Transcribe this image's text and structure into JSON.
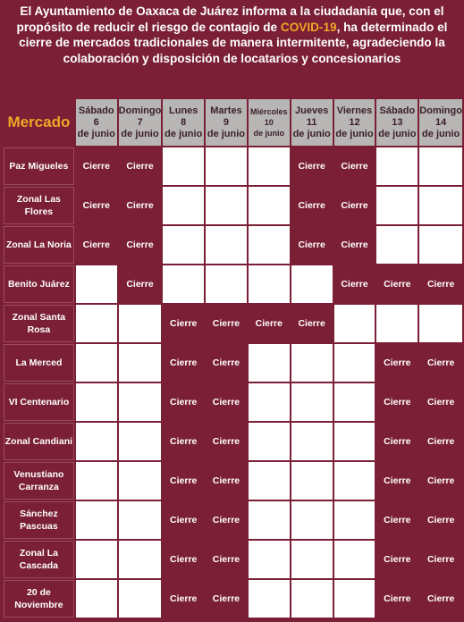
{
  "intro": {
    "before": "El Ayuntamiento de Oaxaca de Juárez informa a la ciudadanía que, con el propósito de reducir el riesgo de contagio de ",
    "highlight": "COVID-19",
    "after": ", ha determinado el cierre de mercados tradicionales de manera intermitente, agradeciendo la colaboración y disposición de locatarios y concesionarios"
  },
  "table": {
    "header_label": "Mercado",
    "days": [
      {
        "weekday": "Sábado",
        "date": "6",
        "month": "de junio"
      },
      {
        "weekday": "Domingo",
        "date": "7",
        "month": "de junio"
      },
      {
        "weekday": "Lunes",
        "date": "8",
        "month": "de junio"
      },
      {
        "weekday": "Martes",
        "date": "9",
        "month": "de junio"
      },
      {
        "weekday": "Miércoles",
        "date": "10",
        "month": "de junio"
      },
      {
        "weekday": "Jueves",
        "date": "11",
        "month": "de junio"
      },
      {
        "weekday": "Viernes",
        "date": "12",
        "month": "de junio"
      },
      {
        "weekday": "Sábado",
        "date": "13",
        "month": "de junio"
      },
      {
        "weekday": "Domingo",
        "date": "14",
        "month": "de junio"
      }
    ],
    "rows": [
      {
        "name": "Paz Migueles",
        "cells": [
          "Cierre",
          "Cierre",
          "",
          "",
          "",
          "Cierre",
          "Cierre",
          "",
          ""
        ]
      },
      {
        "name": "Zonal Las Flores",
        "cells": [
          "Cierre",
          "Cierre",
          "",
          "",
          "",
          "Cierre",
          "Cierre",
          "",
          ""
        ]
      },
      {
        "name": "Zonal La Noria",
        "cells": [
          "Cierre",
          "Cierre",
          "",
          "",
          "",
          "Cierre",
          "Cierre",
          "",
          ""
        ]
      },
      {
        "name": "Benito Juárez",
        "cells": [
          "",
          "Cierre",
          "",
          "",
          "",
          "",
          "Cierre",
          "Cierre",
          "Cierre"
        ]
      },
      {
        "name": "Zonal Santa Rosa",
        "cells": [
          "",
          "",
          "Cierre",
          "Cierre",
          "Cierre",
          "Cierre",
          "",
          "",
          ""
        ]
      },
      {
        "name": "La Merced",
        "cells": [
          "",
          "",
          "Cierre",
          "Cierre",
          "",
          "",
          "",
          "Cierre",
          "Cierre"
        ]
      },
      {
        "name": "VI Centenario",
        "cells": [
          "",
          "",
          "Cierre",
          "Cierre",
          "",
          "",
          "",
          "Cierre",
          "Cierre"
        ]
      },
      {
        "name": "Zonal Candiani",
        "cells": [
          "",
          "",
          "Cierre",
          "Cierre",
          "",
          "",
          "",
          "Cierre",
          "Cierre"
        ]
      },
      {
        "name": "Venustiano Carranza",
        "cells": [
          "",
          "",
          "Cierre",
          "Cierre",
          "",
          "",
          "",
          "Cierre",
          "Cierre"
        ]
      },
      {
        "name": "Sánchez Pascuas",
        "cells": [
          "",
          "",
          "Cierre",
          "Cierre",
          "",
          "",
          "",
          "Cierre",
          "Cierre"
        ]
      },
      {
        "name": "Zonal La Cascada",
        "cells": [
          "",
          "",
          "Cierre",
          "Cierre",
          "",
          "",
          "",
          "Cierre",
          "Cierre"
        ]
      },
      {
        "name": "20 de Noviembre",
        "cells": [
          "",
          "",
          "Cierre",
          "Cierre",
          "",
          "",
          "",
          "Cierre",
          "Cierre"
        ]
      }
    ]
  },
  "colors": {
    "maroon": "#7a1f35",
    "header_gray": "#b8b5b5",
    "accent_orange": "#f2a427",
    "open_white": "#ffffff"
  }
}
